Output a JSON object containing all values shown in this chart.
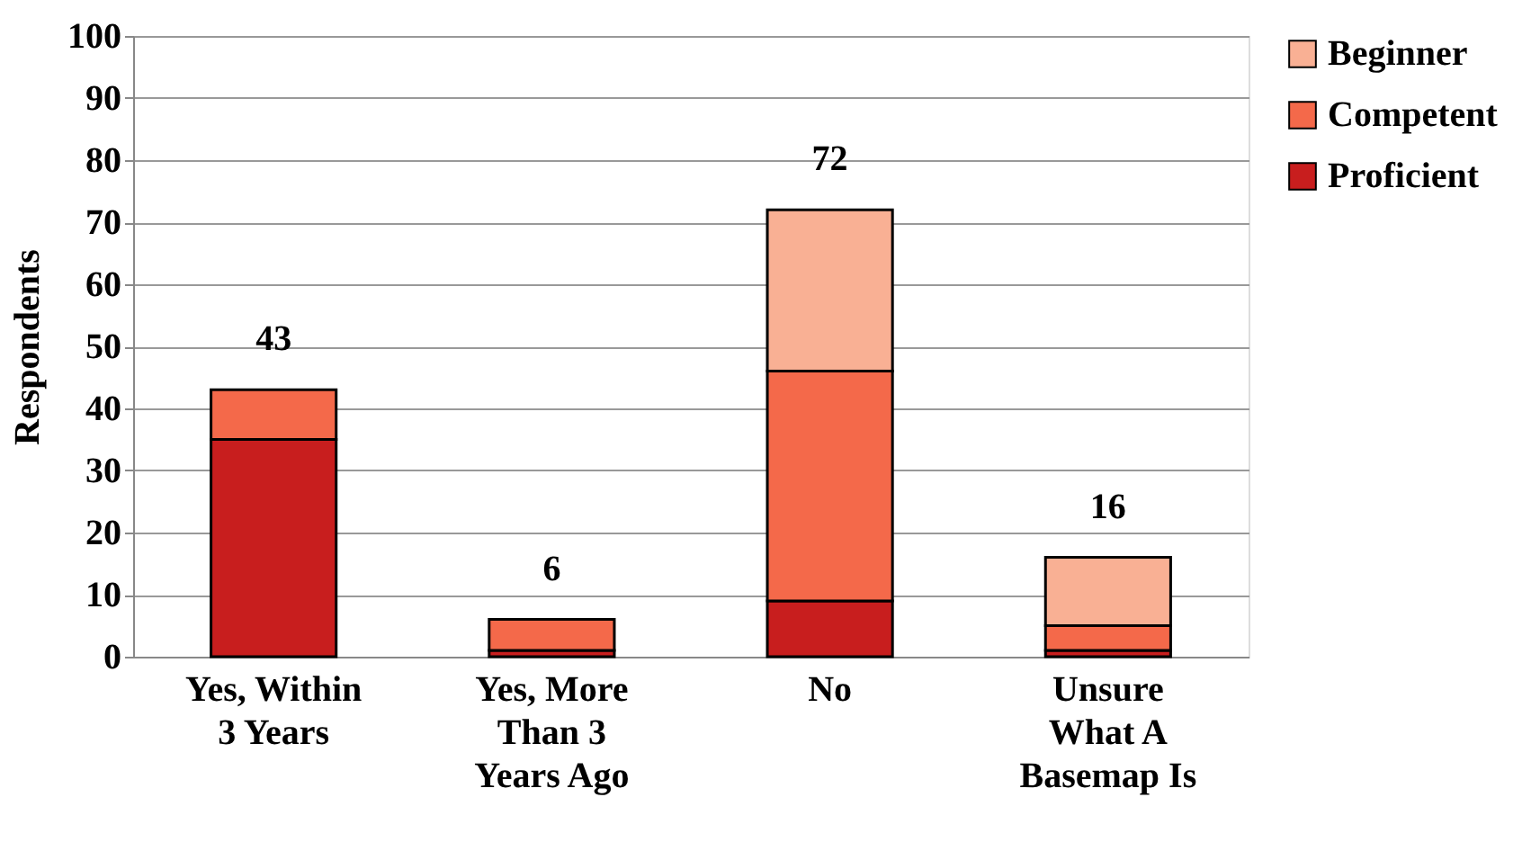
{
  "chart_data": {
    "type": "bar",
    "stacked": true,
    "ylabel": "Respondents",
    "categories": [
      "Yes, Within\n3 Years",
      "Yes, More\nThan 3\nYears Ago",
      "No",
      "Unsure\nWhat A\nBasemap Is"
    ],
    "series": [
      {
        "name": "Proficient",
        "color": "#c81e1e",
        "values": [
          35,
          1,
          9,
          1
        ]
      },
      {
        "name": "Competent",
        "color": "#f4694a",
        "values": [
          8,
          5,
          37,
          4
        ]
      },
      {
        "name": "Beginner",
        "color": "#f9b094",
        "values": [
          null,
          null,
          26,
          11
        ]
      }
    ],
    "totals": [
      "43",
      "6",
      "72",
      "16"
    ],
    "ylim": [
      0,
      100
    ],
    "yticks": [
      0,
      10,
      20,
      30,
      40,
      50,
      60,
      70,
      80,
      90,
      100
    ],
    "grid": "y",
    "legend": "right"
  }
}
